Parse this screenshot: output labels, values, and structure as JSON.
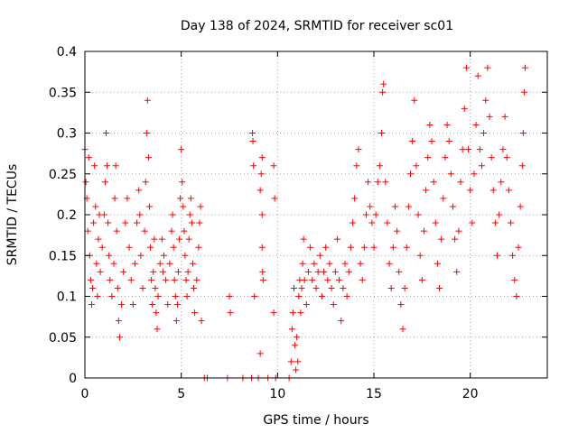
{
  "chart_data": {
    "type": "scatter",
    "title": "Day 138 of 2024, SRMTID for receiver sc01",
    "xlabel": "GPS time / hours",
    "ylabel": "SRMTID / TECUs",
    "xlim": [
      0,
      24
    ],
    "ylim": [
      0,
      0.4
    ],
    "x_ticks": [
      0,
      5,
      10,
      15,
      20
    ],
    "x_tick_labels": [
      "0",
      "5",
      "10",
      "15",
      "20"
    ],
    "y_ticks": [
      0,
      0.05,
      0.1,
      0.15,
      0.2,
      0.25,
      0.3,
      0.35,
      0.4
    ],
    "y_tick_labels": [
      "0",
      "0.05",
      "0.1",
      "0.15",
      "0.2",
      "0.25",
      "0.3",
      "0.35",
      "0.4"
    ],
    "grid": true,
    "marker": "plus",
    "series": [
      {
        "name": "SRMTID",
        "color": "#ff0000",
        "points": [
          [
            0.0,
            0.28
          ],
          [
            0.05,
            0.24
          ],
          [
            0.1,
            0.22
          ],
          [
            0.15,
            0.18
          ],
          [
            0.2,
            0.27
          ],
          [
            0.25,
            0.15
          ],
          [
            0.3,
            0.12
          ],
          [
            0.35,
            0.09
          ],
          [
            0.4,
            0.11
          ],
          [
            0.45,
            0.19
          ],
          [
            0.5,
            0.26
          ],
          [
            0.55,
            0.21
          ],
          [
            0.6,
            0.14
          ],
          [
            0.65,
            0.1
          ],
          [
            0.7,
            0.17
          ],
          [
            0.75,
            0.2
          ],
          [
            0.8,
            0.13
          ],
          [
            0.9,
            0.16
          ],
          [
            1.0,
            0.2
          ],
          [
            1.05,
            0.24
          ],
          [
            1.1,
            0.3
          ],
          [
            1.15,
            0.26
          ],
          [
            1.2,
            0.19
          ],
          [
            1.25,
            0.15
          ],
          [
            1.3,
            0.12
          ],
          [
            1.4,
            0.1
          ],
          [
            1.5,
            0.14
          ],
          [
            1.55,
            0.22
          ],
          [
            1.6,
            0.26
          ],
          [
            1.65,
            0.18
          ],
          [
            1.7,
            0.11
          ],
          [
            1.75,
            0.07
          ],
          [
            1.8,
            0.05
          ],
          [
            1.9,
            0.09
          ],
          [
            2.0,
            0.13
          ],
          [
            2.1,
            0.19
          ],
          [
            2.2,
            0.22
          ],
          [
            2.3,
            0.16
          ],
          [
            2.4,
            0.12
          ],
          [
            2.5,
            0.09
          ],
          [
            2.6,
            0.14
          ],
          [
            2.7,
            0.19
          ],
          [
            2.8,
            0.23
          ],
          [
            2.85,
            0.2
          ],
          [
            2.9,
            0.15
          ],
          [
            3.0,
            0.11
          ],
          [
            3.1,
            0.18
          ],
          [
            3.15,
            0.24
          ],
          [
            3.2,
            0.3
          ],
          [
            3.25,
            0.34
          ],
          [
            3.3,
            0.27
          ],
          [
            3.35,
            0.21
          ],
          [
            3.4,
            0.16
          ],
          [
            3.45,
            0.12
          ],
          [
            3.5,
            0.09
          ],
          [
            3.55,
            0.13
          ],
          [
            3.6,
            0.17
          ],
          [
            3.65,
            0.11
          ],
          [
            3.7,
            0.08
          ],
          [
            3.75,
            0.06
          ],
          [
            3.8,
            0.1
          ],
          [
            3.9,
            0.14
          ],
          [
            4.0,
            0.17
          ],
          [
            4.05,
            0.13
          ],
          [
            4.1,
            0.15
          ],
          [
            4.2,
            0.12
          ],
          [
            4.3,
            0.09
          ],
          [
            4.4,
            0.14
          ],
          [
            4.5,
            0.18
          ],
          [
            4.55,
            0.2
          ],
          [
            4.6,
            0.16
          ],
          [
            4.65,
            0.12
          ],
          [
            4.7,
            0.1
          ],
          [
            4.75,
            0.07
          ],
          [
            4.8,
            0.09
          ],
          [
            4.85,
            0.13
          ],
          [
            4.9,
            0.17
          ],
          [
            4.95,
            0.22
          ],
          [
            5.0,
            0.28
          ],
          [
            5.05,
            0.24
          ],
          [
            5.1,
            0.21
          ],
          [
            5.15,
            0.18
          ],
          [
            5.2,
            0.15
          ],
          [
            5.25,
            0.12
          ],
          [
            5.3,
            0.1
          ],
          [
            5.35,
            0.13
          ],
          [
            5.4,
            0.17
          ],
          [
            5.45,
            0.2
          ],
          [
            5.5,
            0.22
          ],
          [
            5.55,
            0.19
          ],
          [
            5.6,
            0.14
          ],
          [
            5.65,
            0.11
          ],
          [
            5.7,
            0.08
          ],
          [
            5.8,
            0.12
          ],
          [
            5.9,
            0.16
          ],
          [
            5.95,
            0.19
          ],
          [
            6.0,
            0.21
          ],
          [
            6.05,
            0.07
          ],
          [
            6.2,
            0.0
          ],
          [
            6.35,
            0.0
          ],
          [
            7.4,
            0.0
          ],
          [
            7.5,
            0.1
          ],
          [
            7.55,
            0.08
          ],
          [
            8.2,
            0.0
          ],
          [
            8.65,
            0.0
          ],
          [
            8.7,
            0.3
          ],
          [
            8.72,
            0.29
          ],
          [
            8.75,
            0.26
          ],
          [
            8.8,
            0.1
          ],
          [
            9.0,
            0.0
          ],
          [
            9.1,
            0.23
          ],
          [
            9.15,
            0.25
          ],
          [
            9.2,
            0.27
          ],
          [
            9.2,
            0.2
          ],
          [
            9.2,
            0.16
          ],
          [
            9.22,
            0.13
          ],
          [
            9.25,
            0.12
          ],
          [
            9.1,
            0.03
          ],
          [
            9.5,
            0.0
          ],
          [
            9.8,
            0.26
          ],
          [
            9.85,
            0.22
          ],
          [
            9.8,
            0.08
          ],
          [
            9.9,
            0.0
          ],
          [
            10.6,
            0.0
          ],
          [
            10.7,
            0.02
          ],
          [
            10.75,
            0.06
          ],
          [
            10.8,
            0.08
          ],
          [
            10.85,
            0.11
          ],
          [
            10.9,
            0.04
          ],
          [
            10.95,
            0.01
          ],
          [
            11.0,
            0.05
          ],
          [
            11.05,
            0.02
          ],
          [
            11.1,
            0.1
          ],
          [
            11.15,
            0.12
          ],
          [
            11.2,
            0.08
          ],
          [
            11.25,
            0.11
          ],
          [
            11.3,
            0.14
          ],
          [
            11.35,
            0.17
          ],
          [
            11.4,
            0.12
          ],
          [
            11.5,
            0.09
          ],
          [
            11.6,
            0.13
          ],
          [
            11.7,
            0.16
          ],
          [
            11.8,
            0.12
          ],
          [
            11.9,
            0.14
          ],
          [
            12.0,
            0.11
          ],
          [
            12.1,
            0.13
          ],
          [
            12.2,
            0.15
          ],
          [
            12.3,
            0.1
          ],
          [
            12.4,
            0.13
          ],
          [
            12.5,
            0.16
          ],
          [
            12.6,
            0.12
          ],
          [
            12.7,
            0.14
          ],
          [
            12.8,
            0.11
          ],
          [
            12.9,
            0.09
          ],
          [
            13.0,
            0.13
          ],
          [
            13.1,
            0.17
          ],
          [
            13.2,
            0.12
          ],
          [
            13.3,
            0.07
          ],
          [
            13.4,
            0.11
          ],
          [
            13.5,
            0.14
          ],
          [
            13.6,
            0.1
          ],
          [
            13.7,
            0.13
          ],
          [
            13.8,
            0.16
          ],
          [
            13.9,
            0.19
          ],
          [
            14.0,
            0.22
          ],
          [
            14.1,
            0.26
          ],
          [
            14.2,
            0.28
          ],
          [
            14.3,
            0.14
          ],
          [
            14.4,
            0.12
          ],
          [
            14.5,
            0.16
          ],
          [
            14.6,
            0.2
          ],
          [
            14.7,
            0.24
          ],
          [
            14.8,
            0.21
          ],
          [
            14.9,
            0.19
          ],
          [
            15.0,
            0.16
          ],
          [
            15.1,
            0.2
          ],
          [
            15.2,
            0.24
          ],
          [
            15.3,
            0.26
          ],
          [
            15.4,
            0.3
          ],
          [
            15.45,
            0.35
          ],
          [
            15.5,
            0.36
          ],
          [
            15.6,
            0.24
          ],
          [
            15.7,
            0.19
          ],
          [
            15.8,
            0.14
          ],
          [
            15.9,
            0.11
          ],
          [
            16.0,
            0.16
          ],
          [
            16.1,
            0.21
          ],
          [
            16.2,
            0.18
          ],
          [
            16.3,
            0.13
          ],
          [
            16.4,
            0.09
          ],
          [
            16.5,
            0.06
          ],
          [
            16.6,
            0.11
          ],
          [
            16.7,
            0.16
          ],
          [
            16.8,
            0.21
          ],
          [
            16.9,
            0.25
          ],
          [
            17.0,
            0.29
          ],
          [
            17.1,
            0.34
          ],
          [
            17.2,
            0.26
          ],
          [
            17.3,
            0.2
          ],
          [
            17.4,
            0.15
          ],
          [
            17.5,
            0.12
          ],
          [
            17.6,
            0.18
          ],
          [
            17.7,
            0.23
          ],
          [
            17.8,
            0.27
          ],
          [
            17.9,
            0.31
          ],
          [
            18.0,
            0.29
          ],
          [
            18.1,
            0.24
          ],
          [
            18.2,
            0.19
          ],
          [
            18.3,
            0.14
          ],
          [
            18.4,
            0.11
          ],
          [
            18.5,
            0.17
          ],
          [
            18.6,
            0.22
          ],
          [
            18.7,
            0.27
          ],
          [
            18.8,
            0.31
          ],
          [
            18.9,
            0.29
          ],
          [
            19.0,
            0.25
          ],
          [
            19.1,
            0.21
          ],
          [
            19.2,
            0.17
          ],
          [
            19.3,
            0.13
          ],
          [
            19.4,
            0.18
          ],
          [
            19.5,
            0.24
          ],
          [
            19.6,
            0.28
          ],
          [
            19.7,
            0.33
          ],
          [
            19.8,
            0.38
          ],
          [
            19.9,
            0.28
          ],
          [
            20.0,
            0.23
          ],
          [
            20.1,
            0.19
          ],
          [
            20.2,
            0.25
          ],
          [
            20.3,
            0.31
          ],
          [
            20.4,
            0.37
          ],
          [
            20.5,
            0.28
          ],
          [
            20.6,
            0.26
          ],
          [
            20.7,
            0.3
          ],
          [
            20.8,
            0.34
          ],
          [
            20.9,
            0.38
          ],
          [
            21.0,
            0.32
          ],
          [
            21.1,
            0.27
          ],
          [
            21.2,
            0.23
          ],
          [
            21.3,
            0.19
          ],
          [
            21.4,
            0.15
          ],
          [
            21.5,
            0.2
          ],
          [
            21.6,
            0.24
          ],
          [
            21.7,
            0.28
          ],
          [
            21.8,
            0.32
          ],
          [
            21.9,
            0.27
          ],
          [
            22.0,
            0.23
          ],
          [
            22.1,
            0.19
          ],
          [
            22.2,
            0.15
          ],
          [
            22.3,
            0.12
          ],
          [
            22.4,
            0.1
          ],
          [
            22.5,
            0.16
          ],
          [
            22.6,
            0.21
          ],
          [
            22.7,
            0.26
          ],
          [
            22.75,
            0.3
          ],
          [
            22.8,
            0.35
          ],
          [
            22.85,
            0.38
          ]
        ]
      }
    ]
  }
}
